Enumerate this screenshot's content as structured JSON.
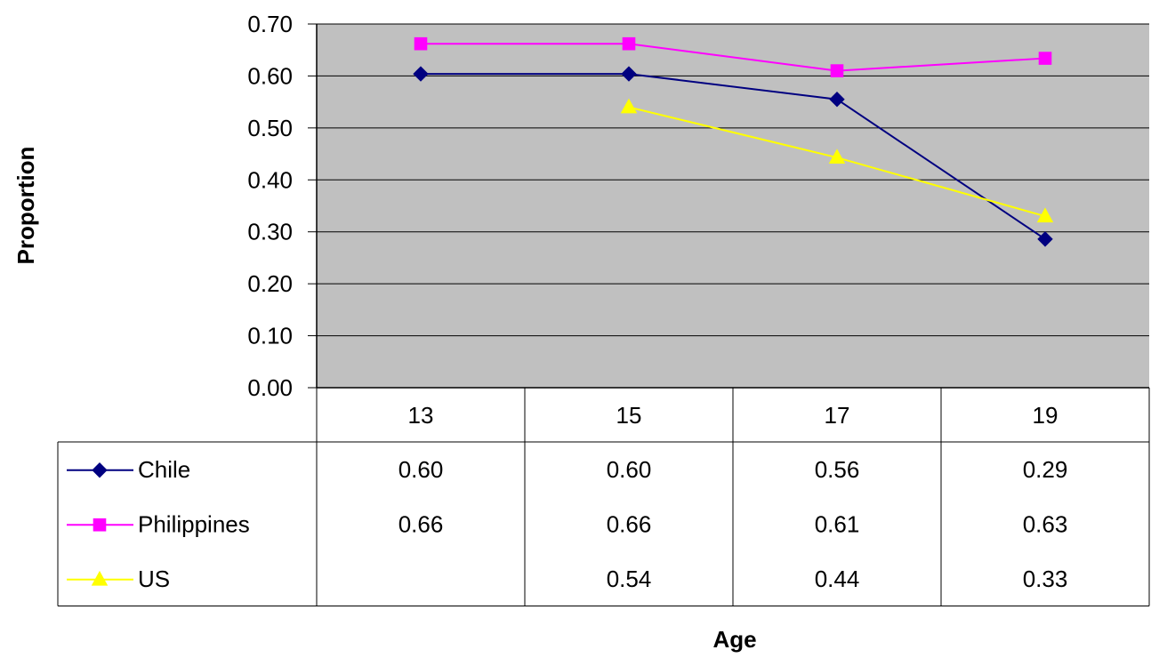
{
  "chart_data": {
    "type": "line",
    "categories": [
      "13",
      "15",
      "17",
      "19"
    ],
    "ylabel": "Proportion",
    "xlabel": "Age",
    "ylim": [
      0,
      0.7
    ],
    "yticks": [
      "0.00",
      "0.10",
      "0.20",
      "0.30",
      "0.40",
      "0.50",
      "0.60",
      "0.70"
    ],
    "grid": "horizontal",
    "plot_background": "#c0c0c0",
    "legend": "data-table",
    "series": [
      {
        "name": "Chile",
        "values": [
          0.604,
          0.604,
          0.555,
          0.286
        ],
        "labels": [
          "0.60",
          "0.60",
          "0.56",
          "0.29"
        ],
        "color": "#000080",
        "marker": "diamond"
      },
      {
        "name": "Philippines",
        "values": [
          0.662,
          0.662,
          0.61,
          0.634
        ],
        "labels": [
          "0.66",
          "0.66",
          "0.61",
          "0.63"
        ],
        "color": "#ff00ff",
        "marker": "square"
      },
      {
        "name": "US",
        "values": [
          null,
          0.54,
          0.443,
          0.33
        ],
        "labels": [
          "",
          "0.54",
          "0.44",
          "0.33"
        ],
        "color": "#ffff00",
        "marker": "triangle"
      }
    ]
  }
}
